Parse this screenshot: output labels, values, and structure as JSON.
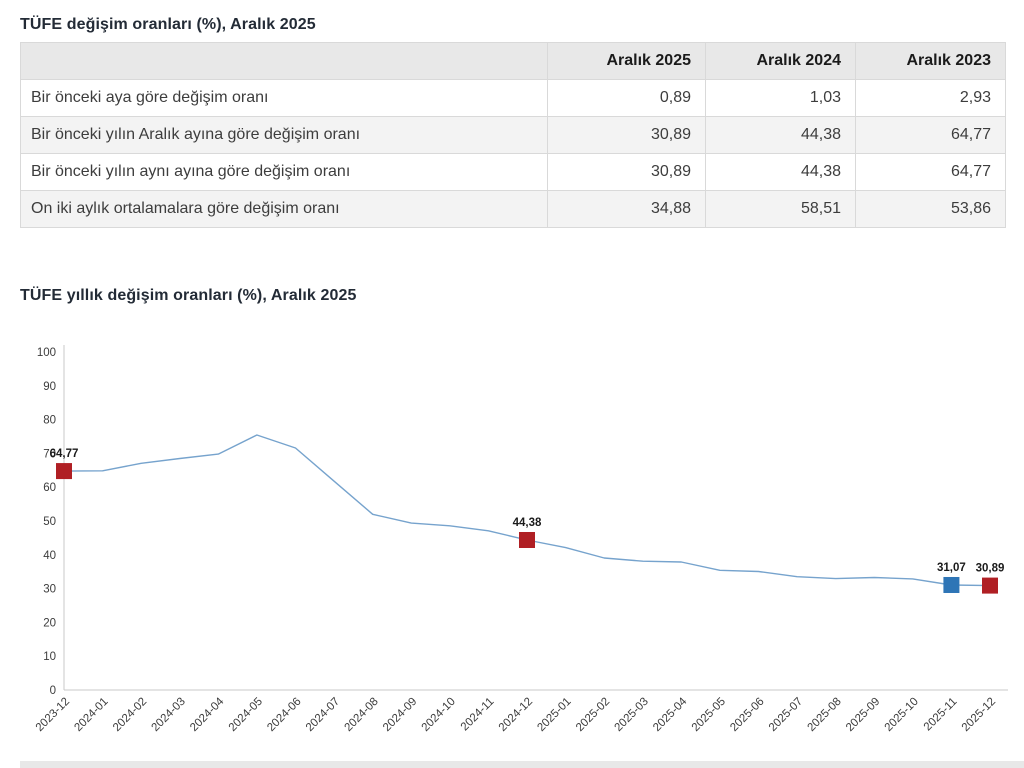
{
  "page": {
    "table_title": "TÜFE değişim oranları (%), Aralık 2025",
    "chart_title": "TÜFE yıllık değişim oranları (%), Aralık 2025"
  },
  "table": {
    "columns": [
      "",
      "Aralık 2025",
      "Aralık 2024",
      "Aralık 2023"
    ],
    "rows": [
      {
        "label": "Bir önceki aya göre değişim oranı",
        "values": [
          "0,89",
          "1,03",
          "2,93"
        ]
      },
      {
        "label": "Bir önceki yılın Aralık ayına göre değişim oranı",
        "values": [
          "30,89",
          "44,38",
          "64,77"
        ]
      },
      {
        "label": "Bir önceki yılın aynı ayına göre değişim oranı",
        "values": [
          "30,89",
          "44,38",
          "64,77"
        ]
      },
      {
        "label": "On iki aylık ortalamalara göre değişim oranı",
        "values": [
          "34,88",
          "58,51",
          "53,86"
        ]
      }
    ]
  },
  "chart_data": {
    "type": "line",
    "title": "TÜFE yıllık değişim oranları (%), Aralık 2025",
    "xlabel": "",
    "ylabel": "",
    "ylim": [
      0,
      100
    ],
    "ytick_step": 10,
    "grid": false,
    "legend": "none",
    "line_color": "#76a3cd",
    "axis_color": "#c9c9c9",
    "x": [
      "2023-12",
      "2024-01",
      "2024-02",
      "2024-03",
      "2024-04",
      "2024-05",
      "2024-06",
      "2024-07",
      "2024-08",
      "2024-09",
      "2024-10",
      "2024-11",
      "2024-12",
      "2025-01",
      "2025-02",
      "2025-03",
      "2025-04",
      "2025-05",
      "2025-06",
      "2025-07",
      "2025-08",
      "2025-09",
      "2025-10",
      "2025-11",
      "2025-12"
    ],
    "values": [
      64.77,
      64.86,
      67.07,
      68.5,
      69.8,
      75.45,
      71.6,
      61.78,
      51.97,
      49.38,
      48.58,
      47.09,
      44.38,
      42.12,
      39.05,
      38.1,
      37.86,
      35.41,
      35.05,
      33.52,
      32.95,
      33.29,
      32.87,
      31.07,
      30.89
    ],
    "markers": [
      {
        "x": "2023-12",
        "value": 64.77,
        "label": "64,77",
        "color": "#b01f24"
      },
      {
        "x": "2024-12",
        "value": 44.38,
        "label": "44,38",
        "color": "#b01f24"
      },
      {
        "x": "2025-11",
        "value": 31.07,
        "label": "31,07",
        "color": "#2e75b6"
      },
      {
        "x": "2025-12",
        "value": 30.89,
        "label": "30,89",
        "color": "#b01f24"
      }
    ]
  }
}
